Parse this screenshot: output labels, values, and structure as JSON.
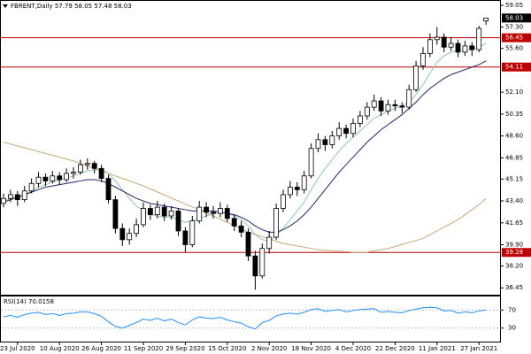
{
  "chart_data": {
    "type": "candlestick",
    "title": "FBRENT,Daily",
    "categories": [
      null,
      null,
      "23 Jul 2020",
      null,
      null,
      null,
      null,
      null,
      "10 Aug 2020",
      null,
      null,
      null,
      null,
      null,
      "26 Aug 2020",
      null,
      null,
      null,
      null,
      null,
      "11 Sep 2020",
      null,
      null,
      null,
      null,
      null,
      "29 Sep 2020",
      null,
      null,
      null,
      null,
      null,
      "15 Oct 2020",
      null,
      null,
      null,
      null,
      null,
      "2 Nov 2020",
      null,
      null,
      null,
      null,
      null,
      "18 Nov 2020",
      null,
      null,
      null,
      null,
      null,
      "4 Dec 2020",
      null,
      null,
      null,
      null,
      null,
      "22 Dec 2020",
      null,
      null,
      null,
      null,
      null,
      "11 Jan 2021",
      null,
      null,
      null,
      null,
      null,
      "27 Jan 2021",
      null
    ],
    "open": [
      43.2,
      43.6,
      43.9,
      43.5,
      44.2,
      44.8,
      45.3,
      45.0,
      45.4,
      45.1,
      45.6,
      45.7,
      46.3,
      46.4,
      46.0,
      45.2,
      43.5,
      41.2,
      40.3,
      40.8,
      41.5,
      42.8,
      42.3,
      42.9,
      42.2,
      42.6,
      41.0,
      39.9,
      41.8,
      42.9,
      42.5,
      42.4,
      42.8,
      42.0,
      41.4,
      40.9,
      39.0,
      37.4,
      39.6,
      40.5,
      42.8,
      43.9,
      44.5,
      44.3,
      45.4,
      47.6,
      48.3,
      47.9,
      48.6,
      49.2,
      48.8,
      49.6,
      50.2,
      50.9,
      51.4,
      50.6,
      51.1,
      51.0,
      50.9,
      52.3,
      54.2,
      55.2,
      56.3,
      56.5,
      55.7,
      56.0,
      55.3,
      55.8,
      55.5,
      57.79
    ],
    "high": [
      44.0,
      44.3,
      44.2,
      44.6,
      45.2,
      45.7,
      45.6,
      45.8,
      45.7,
      46.0,
      46.1,
      46.7,
      46.8,
      46.6,
      46.3,
      45.5,
      43.8,
      41.6,
      41.2,
      42.0,
      43.3,
      43.1,
      43.4,
      43.2,
      43.0,
      42.8,
      41.3,
      42.2,
      43.4,
      43.3,
      43.0,
      43.3,
      43.1,
      42.3,
      41.8,
      41.2,
      39.4,
      40.0,
      41.0,
      43.2,
      44.3,
      45.0,
      44.9,
      45.8,
      48.0,
      48.8,
      48.6,
      49.0,
      49.7,
      49.5,
      50.0,
      50.6,
      51.3,
      51.9,
      51.7,
      51.5,
      51.5,
      51.3,
      52.7,
      54.6,
      55.7,
      56.8,
      57.3,
      56.8,
      56.5,
      56.3,
      56.2,
      56.1,
      57.4,
      58.05
    ],
    "low": [
      42.9,
      43.3,
      43.0,
      43.3,
      44.0,
      44.5,
      44.6,
      44.8,
      44.7,
      44.9,
      45.2,
      45.5,
      45.9,
      45.6,
      44.9,
      43.2,
      40.8,
      39.8,
      39.9,
      40.5,
      41.3,
      41.9,
      42.0,
      41.8,
      41.9,
      40.6,
      39.3,
      39.7,
      41.6,
      42.1,
      42.0,
      42.1,
      41.7,
      41.0,
      40.5,
      38.6,
      36.3,
      37.2,
      39.2,
      40.3,
      42.5,
      43.6,
      43.8,
      44.0,
      45.2,
      47.3,
      47.4,
      47.6,
      48.3,
      48.4,
      48.5,
      49.3,
      49.9,
      50.6,
      50.2,
      50.3,
      50.6,
      50.4,
      50.7,
      52.1,
      53.9,
      54.9,
      55.9,
      55.3,
      55.4,
      54.9,
      55.0,
      55.0,
      55.3,
      57.48
    ],
    "close": [
      43.6,
      43.9,
      43.5,
      44.2,
      44.8,
      45.3,
      45.0,
      45.4,
      45.1,
      45.6,
      45.7,
      46.3,
      46.4,
      46.0,
      45.2,
      43.5,
      41.2,
      40.3,
      40.8,
      41.5,
      42.8,
      42.3,
      42.9,
      42.2,
      42.6,
      41.0,
      39.9,
      41.8,
      42.9,
      42.5,
      42.4,
      42.8,
      42.0,
      41.4,
      40.9,
      39.0,
      37.4,
      39.6,
      40.5,
      42.8,
      43.9,
      44.5,
      44.3,
      45.4,
      47.6,
      48.3,
      47.9,
      48.6,
      49.2,
      48.8,
      49.6,
      50.2,
      50.9,
      51.4,
      50.6,
      51.1,
      51.0,
      50.9,
      52.3,
      54.2,
      55.2,
      56.3,
      56.5,
      55.7,
      56.0,
      55.3,
      55.8,
      55.5,
      57.2,
      58.03
    ],
    "moving_averages": [
      {
        "color": "#8cc9b0",
        "values": [
          43.4,
          43.6,
          43.7,
          43.9,
          44.2,
          44.5,
          44.7,
          44.9,
          45.1,
          45.2,
          45.4,
          45.6,
          45.8,
          45.9,
          45.9,
          45.6,
          45.0,
          44.3,
          43.6,
          43.0,
          42.6,
          42.3,
          42.2,
          42.1,
          42.1,
          41.9,
          41.7,
          41.8,
          42.0,
          42.2,
          42.4,
          42.5,
          42.4,
          42.2,
          41.9,
          41.4,
          40.7,
          40.3,
          40.2,
          40.6,
          41.2,
          41.9,
          42.6,
          43.3,
          44.3,
          45.2,
          46.0,
          46.7,
          47.4,
          48.0,
          48.5,
          49.0,
          49.5,
          50.0,
          50.3,
          50.6,
          50.8,
          51.0,
          51.3,
          51.9,
          52.7,
          53.6,
          54.5,
          55.0,
          55.3,
          55.4,
          55.5,
          55.5,
          55.7,
          56.0
        ]
      },
      {
        "color": "#22226e",
        "values": [
          43.3,
          43.5,
          43.7,
          43.9,
          44.1,
          44.3,
          44.5,
          44.6,
          44.7,
          44.8,
          44.9,
          45.0,
          45.1,
          45.1,
          45.0,
          44.8,
          44.5,
          44.2,
          43.9,
          43.6,
          43.4,
          43.2,
          43.1,
          43.0,
          42.9,
          42.8,
          42.7,
          42.6,
          42.6,
          42.6,
          42.6,
          42.5,
          42.4,
          42.3,
          42.1,
          41.8,
          41.4,
          41.1,
          40.9,
          40.9,
          41.1,
          41.4,
          41.8,
          42.3,
          42.9,
          43.6,
          44.3,
          45.0,
          45.7,
          46.3,
          46.9,
          47.5,
          48.1,
          48.6,
          49.1,
          49.5,
          49.9,
          50.3,
          50.8,
          51.3,
          51.9,
          52.4,
          52.8,
          53.2,
          53.5,
          53.7,
          53.9,
          54.1,
          54.3,
          54.6
        ]
      },
      {
        "color": "#c9a877",
        "values": [
          48.1,
          47.95,
          47.8,
          47.65,
          47.5,
          47.35,
          47.2,
          47.05,
          46.9,
          46.75,
          46.6,
          46.4,
          46.2,
          46.0,
          45.8,
          45.6,
          45.4,
          45.2,
          45.0,
          44.8,
          44.6,
          44.36,
          44.12,
          43.88,
          43.64,
          43.4,
          43.16,
          42.92,
          42.68,
          42.44,
          42.2,
          41.94,
          41.68,
          41.42,
          41.16,
          40.9,
          40.72,
          40.54,
          40.36,
          40.18,
          40.0,
          39.9,
          39.8,
          39.7,
          39.6,
          39.5,
          39.46,
          39.42,
          39.38,
          39.34,
          39.3,
          39.3,
          39.3,
          39.4,
          39.5,
          39.6,
          39.76,
          39.92,
          40.08,
          40.24,
          40.4,
          40.7,
          41.0,
          41.3,
          41.6,
          41.9,
          42.3,
          42.7,
          43.1,
          43.6
        ]
      }
    ],
    "hlines": [
      56.45,
      54.11,
      39.28
    ],
    "hline_color": "#c00000",
    "up_color": "#ffffff",
    "down_color": "#000000",
    "ylim": [
      35.9,
      59.4
    ],
    "yticks": [
      59.05,
      {
        "value": 57.3,
        "label": "57.30"
      },
      {
        "value": 55.6,
        "label": "55.60"
      },
      {
        "value": 52.1,
        "label": "52.10"
      },
      50.35,
      {
        "value": 48.6,
        "label": "48.60"
      },
      46.85,
      45.15,
      {
        "value": 43.4,
        "label": "43.40"
      },
      41.65,
      {
        "value": 39.9,
        "label": "39.90"
      },
      {
        "value": 38.2,
        "label": "38.20"
      },
      36.45
    ],
    "grid": false,
    "rsi": {
      "label": "RSI(14)",
      "color": "#1e90ff",
      "ylim": [
        0,
        100
      ],
      "yticks": [
        70,
        30
      ],
      "values": [
        55,
        58,
        54,
        60,
        63,
        65,
        60,
        62,
        58,
        62,
        63,
        66,
        66,
        62,
        56,
        44,
        34,
        30,
        36,
        42,
        50,
        47,
        52,
        46,
        50,
        42,
        37,
        48,
        55,
        52,
        51,
        54,
        48,
        44,
        41,
        33,
        28,
        42,
        47,
        57,
        61,
        63,
        61,
        65,
        71,
        73,
        67,
        69,
        71,
        66,
        69,
        71,
        72,
        73,
        65,
        67,
        65,
        64,
        69,
        72,
        75,
        76,
        75,
        68,
        69,
        63,
        66,
        64,
        68,
        70.0158
      ]
    }
  }
}
